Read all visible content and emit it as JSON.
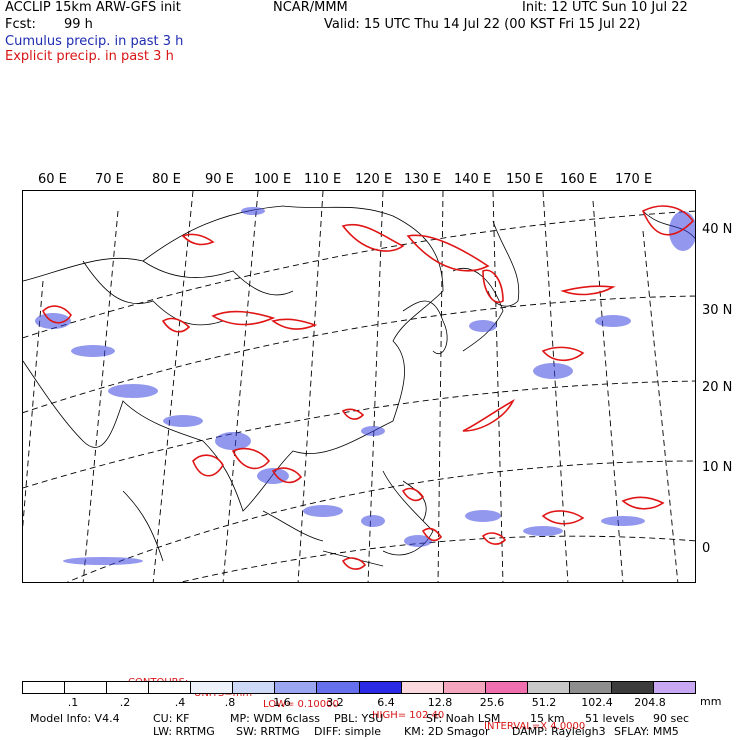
{
  "header": {
    "model": "ACCLIP 15km ARW-GFS init",
    "center": "NCAR/MMM",
    "init": "Init: 12 UTC Sun 10 Jul 22",
    "fcst_label": "Fcst:",
    "fcst_value": "99 h",
    "valid": "Valid: 15 UTC Thu 14 Jul 22 (00 KST Fri 15 Jul 22)",
    "legend_cumulus": "Cumulus precip. in past 3 h",
    "legend_explicit": "Explicit precip. in past 3 h"
  },
  "map": {
    "longitude_labels": [
      "60 E",
      "70 E",
      "80 E",
      "90 E",
      "100 E",
      "110 E",
      "120 E",
      "130 E",
      "140 E",
      "150 E",
      "160 E",
      "170 E"
    ],
    "latitude_labels": [
      "40 N",
      "30 N",
      "20 N",
      "10 N",
      "0"
    ]
  },
  "contours": {
    "label": "CONTOURS:",
    "units": "UNITS=mm",
    "low": "LOW= 0.10000",
    "high": "HIGH= 102.40",
    "interval": "INTERVAL=X 4.0000"
  },
  "colorbar": {
    "colors": [
      "#ffffff",
      "#ffffff",
      "#ffffff",
      "#ffffff",
      "#eef3fb",
      "#cdd9f6",
      "#9aa6f0",
      "#6770ec",
      "#2a2ae6",
      "#fbd8de",
      "#f4a6bf",
      "#f06fae",
      "#c8c8c8",
      "#8e8e8e",
      "#3c3c3c",
      "#c8a8f2"
    ],
    "tick_labels": [
      ".1",
      ".2",
      ".4",
      ".8",
      "1.6",
      "3.2",
      "6.4",
      "12.8",
      "25.6",
      "51.2",
      "102.4",
      "204.8"
    ],
    "units": "mm"
  },
  "footer": {
    "line1": {
      "model_info": "Model Info: V4.4",
      "cu": "CU: KF",
      "mp": "MP: WDM 6class",
      "pbl": "PBL: YSU",
      "sf": "SF: Noah LSM",
      "res": "15 km",
      "levels": "51 levels",
      "dt": "90 sec"
    },
    "line2": {
      "lw": "LW: RRTMG",
      "sw": "SW: RRTMG",
      "diff": "DIFF: simple",
      "km": "KM: 2D Smagor",
      "damp": "DAMP: Rayleigh3",
      "sflay": "SFLAY: MM5"
    }
  }
}
